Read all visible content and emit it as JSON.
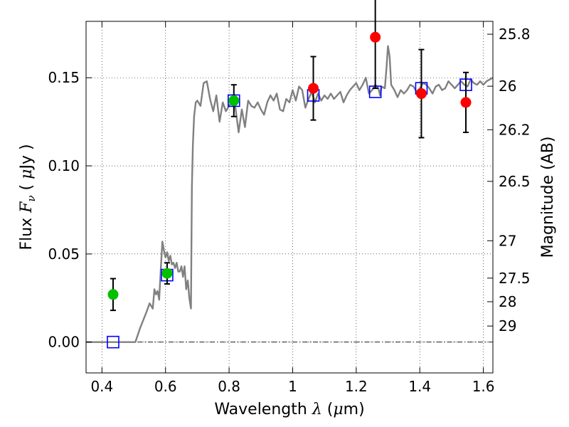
{
  "chart_data": {
    "type": "scatter",
    "xlabel": {
      "prefix": "Wavelength ",
      "symbol": "λ",
      "unit_open": " (",
      "unit_symbol": "μ",
      "unit_rest": "m)"
    },
    "ylabel": {
      "prefix": "Flux ",
      "symbol": "F",
      "subscript": "ν",
      "unit_open": " ( ",
      "unit_symbol": "μ",
      "unit_rest": "Jy )"
    },
    "y2label": "Magnitude (AB)",
    "xlim": [
      0.35,
      1.63
    ],
    "ylim": [
      -0.0175,
      0.182
    ],
    "grid": true,
    "x_ticks": [
      {
        "value": 0.4,
        "label": "0.4"
      },
      {
        "value": 0.6,
        "label": "0.6"
      },
      {
        "value": 0.8,
        "label": "0.8"
      },
      {
        "value": 1.0,
        "label": "1"
      },
      {
        "value": 1.2,
        "label": "1.2"
      },
      {
        "value": 1.4,
        "label": "1.4"
      },
      {
        "value": 1.6,
        "label": "1.6"
      }
    ],
    "y_ticks": [
      {
        "value": 0.0,
        "label": "0.00"
      },
      {
        "value": 0.05,
        "label": "0.05"
      },
      {
        "value": 0.1,
        "label": "0.10"
      },
      {
        "value": 0.15,
        "label": "0.15"
      }
    ],
    "y2_ticks": [
      {
        "flux": 0.1747,
        "label": "25.8"
      },
      {
        "flux": 0.1452,
        "label": "26"
      },
      {
        "flux": 0.1205,
        "label": "26.2"
      },
      {
        "flux": 0.0912,
        "label": "26.5"
      },
      {
        "flux": 0.0575,
        "label": "27"
      },
      {
        "flux": 0.0363,
        "label": "27.5"
      },
      {
        "flux": 0.0229,
        "label": "28"
      },
      {
        "flux": 0.0091,
        "label": "29"
      }
    ],
    "zero_line": 0.0,
    "model_spectrum": {
      "color": "#808080",
      "x": [
        0.35,
        0.505,
        0.52,
        0.54,
        0.55,
        0.56,
        0.565,
        0.57,
        0.575,
        0.58,
        0.585,
        0.59,
        0.595,
        0.6,
        0.605,
        0.61,
        0.615,
        0.62,
        0.625,
        0.63,
        0.635,
        0.64,
        0.645,
        0.65,
        0.655,
        0.66,
        0.665,
        0.67,
        0.675,
        0.68,
        0.683,
        0.686,
        0.69,
        0.695,
        0.7,
        0.71,
        0.72,
        0.73,
        0.74,
        0.75,
        0.76,
        0.77,
        0.78,
        0.79,
        0.8,
        0.81,
        0.82,
        0.83,
        0.84,
        0.85,
        0.86,
        0.87,
        0.88,
        0.89,
        0.9,
        0.91,
        0.92,
        0.93,
        0.94,
        0.95,
        0.96,
        0.97,
        0.98,
        0.99,
        1.0,
        1.01,
        1.02,
        1.03,
        1.04,
        1.05,
        1.06,
        1.07,
        1.08,
        1.09,
        1.1,
        1.11,
        1.12,
        1.13,
        1.14,
        1.15,
        1.16,
        1.17,
        1.18,
        1.19,
        1.2,
        1.21,
        1.22,
        1.23,
        1.24,
        1.25,
        1.26,
        1.27,
        1.275,
        1.28,
        1.29,
        1.295,
        1.3,
        1.305,
        1.31,
        1.32,
        1.33,
        1.34,
        1.35,
        1.36,
        1.37,
        1.38,
        1.39,
        1.4,
        1.41,
        1.42,
        1.43,
        1.44,
        1.45,
        1.46,
        1.47,
        1.48,
        1.49,
        1.5,
        1.51,
        1.52,
        1.53,
        1.54,
        1.55,
        1.56,
        1.57,
        1.58,
        1.59,
        1.6,
        1.61,
        1.62,
        1.63
      ],
      "y": [
        0.0,
        0.0,
        0.008,
        0.017,
        0.022,
        0.019,
        0.03,
        0.027,
        0.029,
        0.024,
        0.041,
        0.057,
        0.052,
        0.048,
        0.051,
        0.046,
        0.049,
        0.044,
        0.045,
        0.042,
        0.045,
        0.04,
        0.04,
        0.043,
        0.037,
        0.043,
        0.03,
        0.035,
        0.025,
        0.019,
        0.088,
        0.112,
        0.128,
        0.136,
        0.137,
        0.134,
        0.147,
        0.148,
        0.138,
        0.131,
        0.14,
        0.125,
        0.136,
        0.131,
        0.134,
        0.137,
        0.133,
        0.119,
        0.132,
        0.122,
        0.137,
        0.134,
        0.133,
        0.136,
        0.132,
        0.129,
        0.136,
        0.14,
        0.137,
        0.141,
        0.132,
        0.131,
        0.138,
        0.136,
        0.143,
        0.137,
        0.145,
        0.143,
        0.133,
        0.138,
        0.142,
        0.136,
        0.141,
        0.137,
        0.14,
        0.138,
        0.141,
        0.138,
        0.14,
        0.142,
        0.136,
        0.14,
        0.143,
        0.145,
        0.147,
        0.143,
        0.146,
        0.15,
        0.141,
        0.143,
        0.146,
        0.144,
        0.14,
        0.145,
        0.144,
        0.155,
        0.168,
        0.162,
        0.146,
        0.143,
        0.139,
        0.143,
        0.141,
        0.143,
        0.146,
        0.145,
        0.142,
        0.144,
        0.147,
        0.146,
        0.144,
        0.141,
        0.145,
        0.146,
        0.143,
        0.144,
        0.148,
        0.146,
        0.144,
        0.146,
        0.148,
        0.146,
        0.145,
        0.149,
        0.147,
        0.146,
        0.148,
        0.146,
        0.148,
        0.149,
        0.15
      ]
    },
    "series": [
      {
        "marker": "open-square",
        "color": "#0000ff",
        "x": [
          0.435,
          0.605,
          0.815,
          1.065,
          1.26,
          1.405,
          1.545
        ],
        "y": [
          0.0,
          0.038,
          0.137,
          0.14,
          0.142,
          0.144,
          0.146
        ]
      },
      {
        "marker": "filled-circle",
        "color": "#00c000",
        "x": [
          0.435,
          0.605,
          0.815
        ],
        "y": [
          0.027,
          0.039,
          0.137
        ],
        "err": [
          0.009,
          0.006,
          0.009
        ]
      },
      {
        "marker": "filled-circle",
        "color": "#ff0000",
        "x": [
          1.065,
          1.26,
          1.405,
          1.545
        ],
        "y": [
          0.144,
          0.173,
          0.141,
          0.136
        ],
        "err": [
          0.018,
          0.029,
          0.025,
          0.017
        ]
      }
    ]
  }
}
